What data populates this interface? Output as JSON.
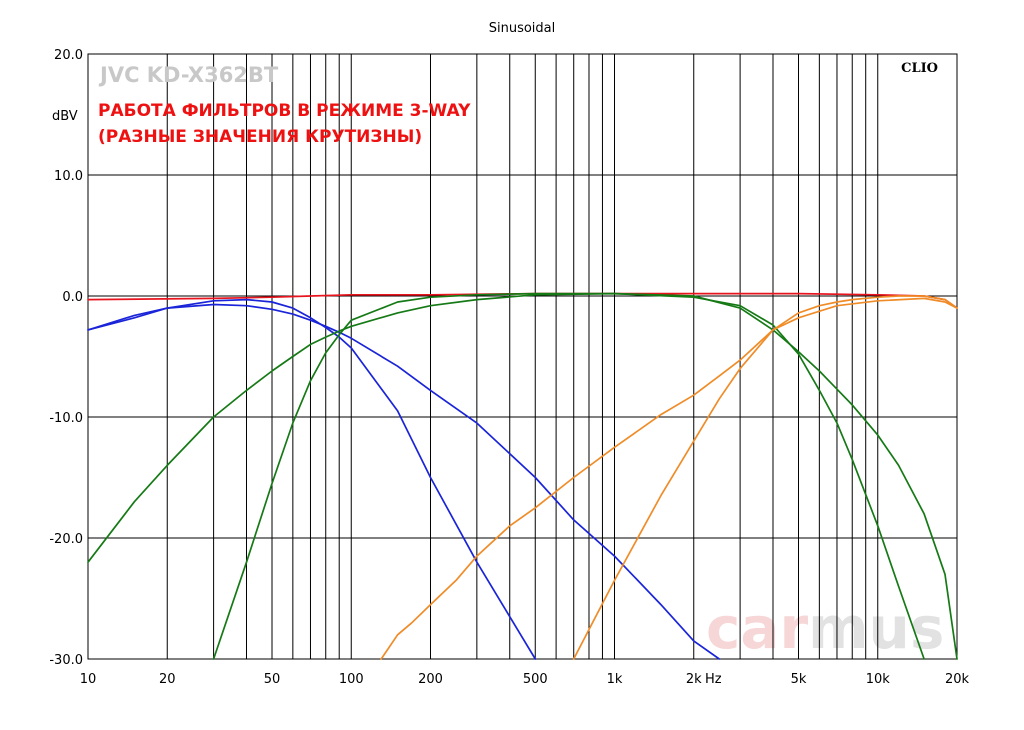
{
  "chart_data": {
    "type": "line",
    "header": "Sinusoidal",
    "brand": "CLIO",
    "model": "JVC KD-X362BT",
    "title_lines": [
      "РАБОТА ФИЛЬТРОВ В РЕЖИМЕ 3-WAY",
      "(РАЗНЫЕ ЗНАЧЕНИЯ КРУТИЗНЫ)"
    ],
    "watermark": "carmus",
    "ylabel": "dBV",
    "x_unit": "Hz",
    "x_scale": "log",
    "xlim": [
      10,
      20000
    ],
    "ylim": [
      -30,
      20
    ],
    "grid": true,
    "x_tick_labels": [
      {
        "x": 10,
        "label": "10"
      },
      {
        "x": 20,
        "label": "20"
      },
      {
        "x": 50,
        "label": "50"
      },
      {
        "x": 100,
        "label": "100"
      },
      {
        "x": 200,
        "label": "200"
      },
      {
        "x": 500,
        "label": "500"
      },
      {
        "x": 1000,
        "label": "1k"
      },
      {
        "x": 2000,
        "label": "2k"
      },
      {
        "x": 5000,
        "label": "5k"
      },
      {
        "x": 10000,
        "label": "10k"
      },
      {
        "x": 20000,
        "label": "20k"
      }
    ],
    "y_tick_labels": [
      {
        "y": 20,
        "label": "20.0"
      },
      {
        "y": 10,
        "label": "10.0"
      },
      {
        "y": 0,
        "label": "0.0"
      },
      {
        "y": -10,
        "label": "-10.0"
      },
      {
        "y": -20,
        "label": "-20.0"
      },
      {
        "y": -30,
        "label": "-30.0"
      }
    ],
    "colors": {
      "red": "#e8141e",
      "blue": "#1a24d8",
      "green": "#157a15",
      "orange": "#f08c28",
      "grid": "#000000",
      "watermark_a": "#f6d6d6",
      "watermark_b": "#e2e2e2"
    },
    "series": [
      {
        "color": "#e8141e",
        "x": [
          10,
          30,
          50,
          70,
          100,
          200,
          500,
          1000,
          2000,
          5000,
          10000,
          15000,
          18000,
          20000
        ],
        "y": [
          -0.3,
          -0.2,
          -0.1,
          0.0,
          0.1,
          0.1,
          0.2,
          0.2,
          0.2,
          0.2,
          0.1,
          0.0,
          -0.3,
          -1.0
        ]
      },
      {
        "color": "#1a24d8",
        "x": [
          10,
          15,
          20,
          30,
          40,
          50,
          60,
          70,
          80,
          90,
          100,
          150,
          200,
          300,
          400,
          500
        ],
        "y": [
          -2.8,
          -1.8,
          -1.0,
          -0.4,
          -0.3,
          -0.5,
          -1.0,
          -1.8,
          -2.6,
          -3.4,
          -4.3,
          -9.5,
          -15.0,
          -22.0,
          -26.5,
          -30.0
        ]
      },
      {
        "color": "#1a24d8",
        "x": [
          10,
          15,
          20,
          30,
          40,
          50,
          60,
          70,
          80,
          90,
          100,
          150,
          200,
          300,
          500,
          700,
          1000,
          1500,
          2000,
          2500
        ],
        "y": [
          -2.8,
          -1.6,
          -1.0,
          -0.7,
          -0.8,
          -1.1,
          -1.5,
          -2.0,
          -2.5,
          -3.0,
          -3.5,
          -5.8,
          -7.8,
          -10.5,
          -15.0,
          -18.5,
          -21.5,
          -25.5,
          -28.5,
          -30.0
        ]
      },
      {
        "color": "#157a15",
        "x": [
          30,
          40,
          50,
          60,
          70,
          80,
          90,
          100,
          150,
          200,
          300,
          500,
          700,
          1000,
          2000,
          3000,
          4000,
          5000,
          6000,
          7000,
          8000,
          10000,
          12000,
          15000
        ],
        "y": [
          -30.0,
          -22.0,
          -15.5,
          -10.5,
          -7.0,
          -4.7,
          -3.2,
          -2.0,
          -0.5,
          -0.1,
          0.1,
          0.2,
          0.2,
          0.2,
          -0.1,
          -0.8,
          -2.4,
          -4.8,
          -7.8,
          -10.5,
          -13.5,
          -19.0,
          -24.0,
          -30.0
        ]
      },
      {
        "color": "#157a15",
        "x": [
          10,
          15,
          20,
          30,
          40,
          50,
          60,
          70,
          80,
          90,
          100,
          150,
          200,
          300,
          500,
          1000,
          2000,
          3000,
          4000,
          5000,
          6000,
          7000,
          8000,
          10000,
          12000,
          15000,
          18000,
          20000
        ],
        "y": [
          -22.0,
          -17.0,
          -14.0,
          -10.0,
          -7.8,
          -6.2,
          -5.0,
          -4.0,
          -3.4,
          -2.9,
          -2.5,
          -1.4,
          -0.8,
          -0.3,
          0.1,
          0.2,
          0.0,
          -1.0,
          -2.8,
          -4.6,
          -6.2,
          -7.7,
          -9.0,
          -11.5,
          -14.0,
          -18.0,
          -23.0,
          -30.0
        ]
      },
      {
        "color": "#f08c28",
        "x": [
          130,
          150,
          170,
          200,
          250,
          300,
          400,
          500,
          700,
          1000,
          1500,
          2000,
          2500,
          3000,
          4000,
          5000,
          7000,
          10000,
          15000,
          18000,
          20000
        ],
        "y": [
          -30.0,
          -28.0,
          -27.0,
          -25.5,
          -23.5,
          -21.5,
          -19.0,
          -17.5,
          -15.0,
          -12.5,
          -9.8,
          -8.2,
          -6.6,
          -5.3,
          -2.8,
          -1.8,
          -0.8,
          -0.4,
          -0.2,
          -0.5,
          -1.0
        ]
      },
      {
        "color": "#f08c28",
        "x": [
          700,
          1000,
          1500,
          2000,
          2500,
          3000,
          4000,
          5000,
          6000,
          7000,
          8000,
          10000,
          12000,
          15000,
          18000,
          20000
        ],
        "y": [
          -30.0,
          -23.5,
          -16.5,
          -12.0,
          -8.5,
          -6.0,
          -2.8,
          -1.4,
          -0.8,
          -0.5,
          -0.3,
          -0.1,
          0.0,
          0.0,
          -0.3,
          -1.0
        ]
      }
    ]
  }
}
